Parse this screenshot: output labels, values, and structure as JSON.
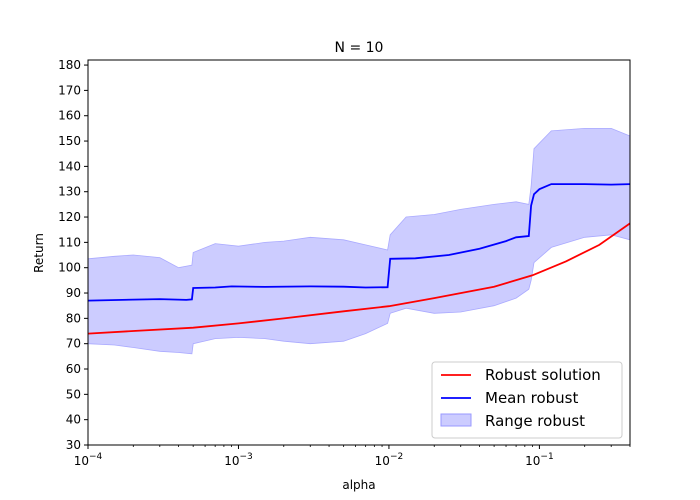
{
  "chart_data": {
    "type": "line",
    "title": "N = 10",
    "xlabel": "alpha",
    "ylabel": "Return",
    "xscale": "log",
    "xlim": [
      0.0001,
      0.4
    ],
    "ylim": [
      30,
      182
    ],
    "xticks": [
      {
        "value": 0.0001,
        "base": "10",
        "exp": "−4"
      },
      {
        "value": 0.001,
        "base": "10",
        "exp": "−3"
      },
      {
        "value": 0.01,
        "base": "10",
        "exp": "−2"
      },
      {
        "value": 0.1,
        "base": "10",
        "exp": "−1"
      }
    ],
    "yticks": [
      30,
      40,
      50,
      60,
      70,
      80,
      90,
      100,
      110,
      120,
      130,
      140,
      150,
      160,
      170,
      180
    ],
    "grid": false,
    "legend_position": "bottom-right",
    "series": [
      {
        "name": "Robust solution",
        "kind": "line",
        "color": "#ff0000",
        "x": [
          0.0001,
          0.0002,
          0.0005,
          0.001,
          0.002,
          0.005,
          0.01,
          0.02,
          0.05,
          0.09,
          0.15,
          0.25,
          0.4
        ],
        "y": [
          74.0,
          75.0,
          76.3,
          78.0,
          80.0,
          82.8,
          84.8,
          88.0,
          92.5,
          97.0,
          102.5,
          109.0,
          117.5
        ]
      },
      {
        "name": "Mean robust",
        "kind": "line",
        "color": "#0000ff",
        "x": [
          0.0001,
          0.0002,
          0.0003,
          0.00045,
          0.00049,
          0.0005,
          0.0007,
          0.0009,
          0.0015,
          0.003,
          0.005,
          0.007,
          0.0098,
          0.0102,
          0.015,
          0.025,
          0.04,
          0.06,
          0.07,
          0.085,
          0.088,
          0.092,
          0.1,
          0.12,
          0.2,
          0.3,
          0.4
        ],
        "y": [
          87.0,
          87.4,
          87.6,
          87.3,
          87.5,
          92.0,
          92.2,
          92.6,
          92.4,
          92.6,
          92.5,
          92.2,
          92.3,
          103.5,
          103.7,
          105.0,
          107.5,
          110.5,
          112.0,
          112.5,
          124.5,
          129.0,
          131.0,
          133.0,
          133.0,
          132.8,
          133.0
        ]
      },
      {
        "name": "Range robust",
        "kind": "band",
        "color": "#0000ff",
        "fill_color": "#ccccff",
        "x": [
          0.0001,
          0.00015,
          0.0002,
          0.0003,
          0.0004,
          0.00049,
          0.0005,
          0.0007,
          0.001,
          0.0015,
          0.002,
          0.003,
          0.005,
          0.007,
          0.0098,
          0.0102,
          0.013,
          0.02,
          0.03,
          0.05,
          0.07,
          0.085,
          0.088,
          0.092,
          0.12,
          0.2,
          0.3,
          0.4
        ],
        "upper": [
          103.5,
          104.5,
          105.0,
          104.0,
          100.0,
          101.0,
          106.0,
          109.5,
          108.5,
          110.0,
          110.5,
          112.0,
          111.0,
          109.0,
          107.0,
          113.0,
          120.0,
          121.0,
          123.0,
          125.0,
          126.0,
          125.0,
          132.0,
          147.0,
          154.0,
          155.0,
          155.0,
          152.0
        ],
        "lower": [
          70.0,
          69.5,
          68.5,
          67.0,
          66.5,
          66.0,
          70.0,
          72.0,
          72.5,
          72.0,
          71.0,
          70.0,
          71.0,
          74.0,
          78.0,
          82.0,
          84.0,
          82.0,
          82.5,
          85.0,
          88.0,
          91.5,
          95.0,
          102.0,
          108.0,
          112.0,
          113.0,
          111.0
        ]
      }
    ]
  }
}
